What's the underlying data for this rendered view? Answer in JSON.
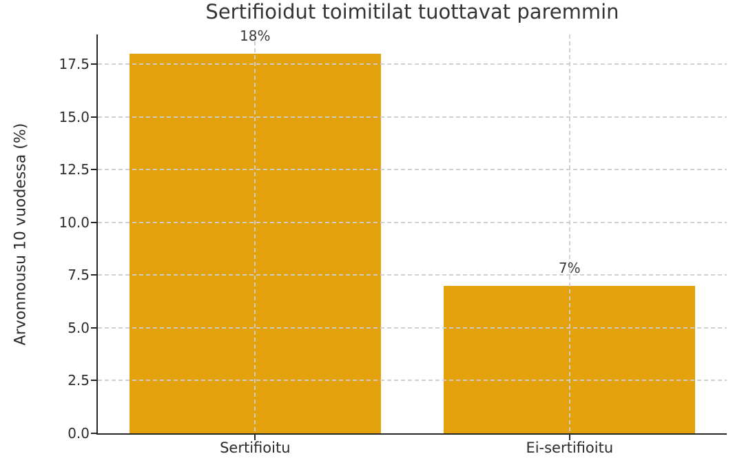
{
  "chart_data": {
    "type": "bar",
    "title": "Sertifioidut toimitilat tuottavat paremmin",
    "categories": [
      "Sertifioitu",
      "Ei-sertifioitu"
    ],
    "values": [
      18,
      7
    ],
    "bar_value_labels": [
      "18%",
      "7%"
    ],
    "xlabel": "",
    "ylabel": "Arvonnousu 10 vuodessa (%)",
    "ylim": [
      0,
      18.9
    ],
    "ytick_values": [
      0,
      2.5,
      5,
      7.5,
      10,
      12.5,
      15,
      17.5
    ],
    "ytick_labels": [
      "0.0",
      "2.5",
      "5.0",
      "7.5",
      "10.0",
      "12.5",
      "15.0",
      "17.5"
    ],
    "grid": "dashed horizontal at yticks and vertical at category centers, drawn over bars",
    "legend_position": "none",
    "bar_width_fraction": 0.8,
    "colors": {
      "bar": "#E3A20B",
      "grid": "#cdcdcd",
      "axis": "#262626",
      "text": "#2b2b2b"
    }
  }
}
